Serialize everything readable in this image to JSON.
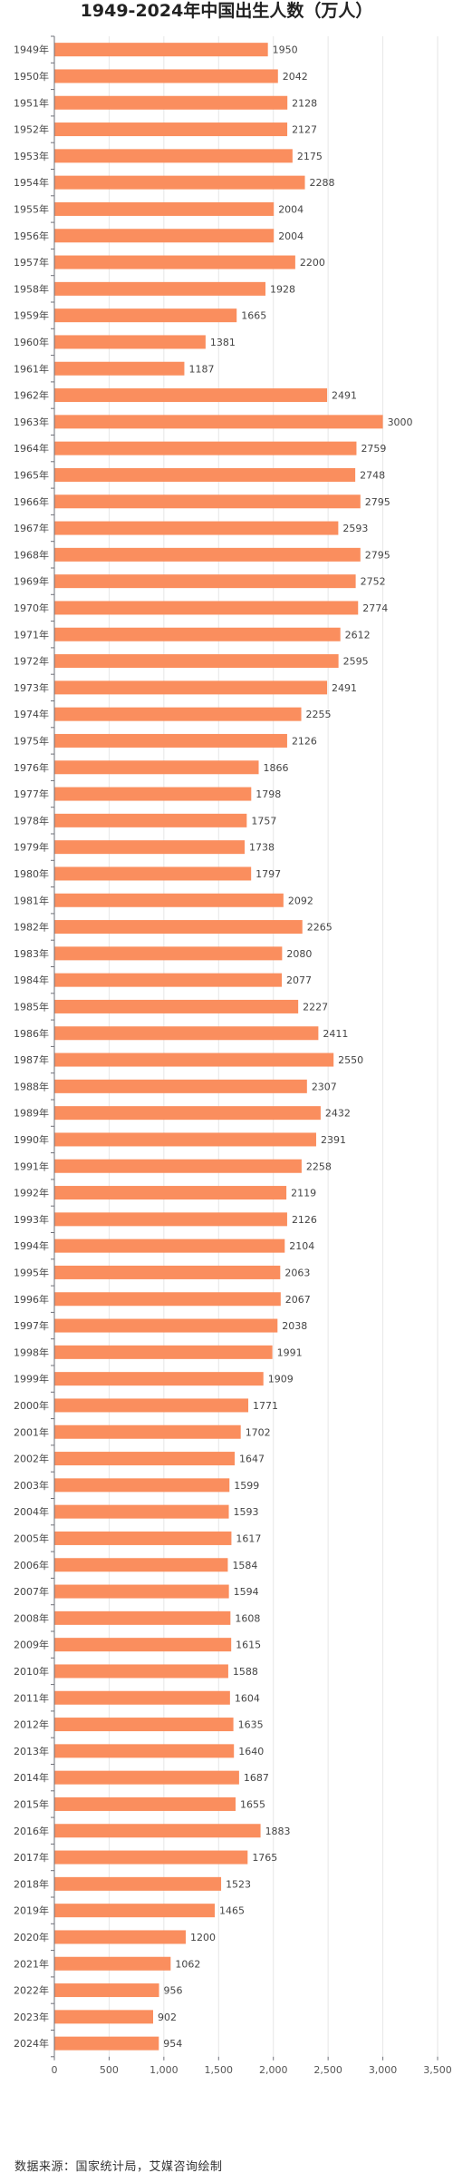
{
  "chart_data": {
    "type": "bar",
    "orientation": "horizontal",
    "title": "1949-2024年中国出生人数（万人）",
    "categories": [
      "1949年",
      "1950年",
      "1951年",
      "1952年",
      "1953年",
      "1954年",
      "1955年",
      "1956年",
      "1957年",
      "1958年",
      "1959年",
      "1960年",
      "1961年",
      "1962年",
      "1963年",
      "1964年",
      "1965年",
      "1966年",
      "1967年",
      "1968年",
      "1969年",
      "1970年",
      "1971年",
      "1972年",
      "1973年",
      "1974年",
      "1975年",
      "1976年",
      "1977年",
      "1978年",
      "1979年",
      "1980年",
      "1981年",
      "1982年",
      "1983年",
      "1984年",
      "1985年",
      "1986年",
      "1987年",
      "1988年",
      "1989年",
      "1990年",
      "1991年",
      "1992年",
      "1993年",
      "1994年",
      "1995年",
      "1996年",
      "1997年",
      "1998年",
      "1999年",
      "2000年",
      "2001年",
      "2002年",
      "2003年",
      "2004年",
      "2005年",
      "2006年",
      "2007年",
      "2008年",
      "2009年",
      "2010年",
      "2011年",
      "2012年",
      "2013年",
      "2014年",
      "2015年",
      "2016年",
      "2017年",
      "2018年",
      "2019年",
      "2020年",
      "2021年",
      "2022年",
      "2023年",
      "2024年"
    ],
    "values": [
      1950,
      2042,
      2128,
      2127,
      2175,
      2288,
      2004,
      2004,
      2200,
      1928,
      1665,
      1381,
      1187,
      2491,
      3000,
      2759,
      2748,
      2795,
      2593,
      2795,
      2752,
      2774,
      2612,
      2595,
      2491,
      2255,
      2126,
      1866,
      1798,
      1757,
      1738,
      1797,
      2092,
      2265,
      2080,
      2077,
      2227,
      2411,
      2550,
      2307,
      2432,
      2391,
      2258,
      2119,
      2126,
      2104,
      2063,
      2067,
      2038,
      1991,
      1909,
      1771,
      1702,
      1647,
      1599,
      1593,
      1617,
      1584,
      1594,
      1608,
      1615,
      1588,
      1604,
      1635,
      1640,
      1687,
      1655,
      1883,
      1765,
      1523,
      1465,
      1200,
      1062,
      956,
      902,
      954
    ],
    "xlim": [
      0,
      3500
    ],
    "x_ticks": [
      "0",
      "500",
      "1,000",
      "1,500",
      "2,000",
      "2,500",
      "3,000",
      "3,500"
    ],
    "x_tick_values": [
      0,
      500,
      1000,
      1500,
      2000,
      2500,
      3000,
      3500
    ],
    "grid": true,
    "bar_color": "#FA8E5E"
  },
  "footer": {
    "source": "数据来源：国家统计局，艾媒咨询绘制"
  }
}
